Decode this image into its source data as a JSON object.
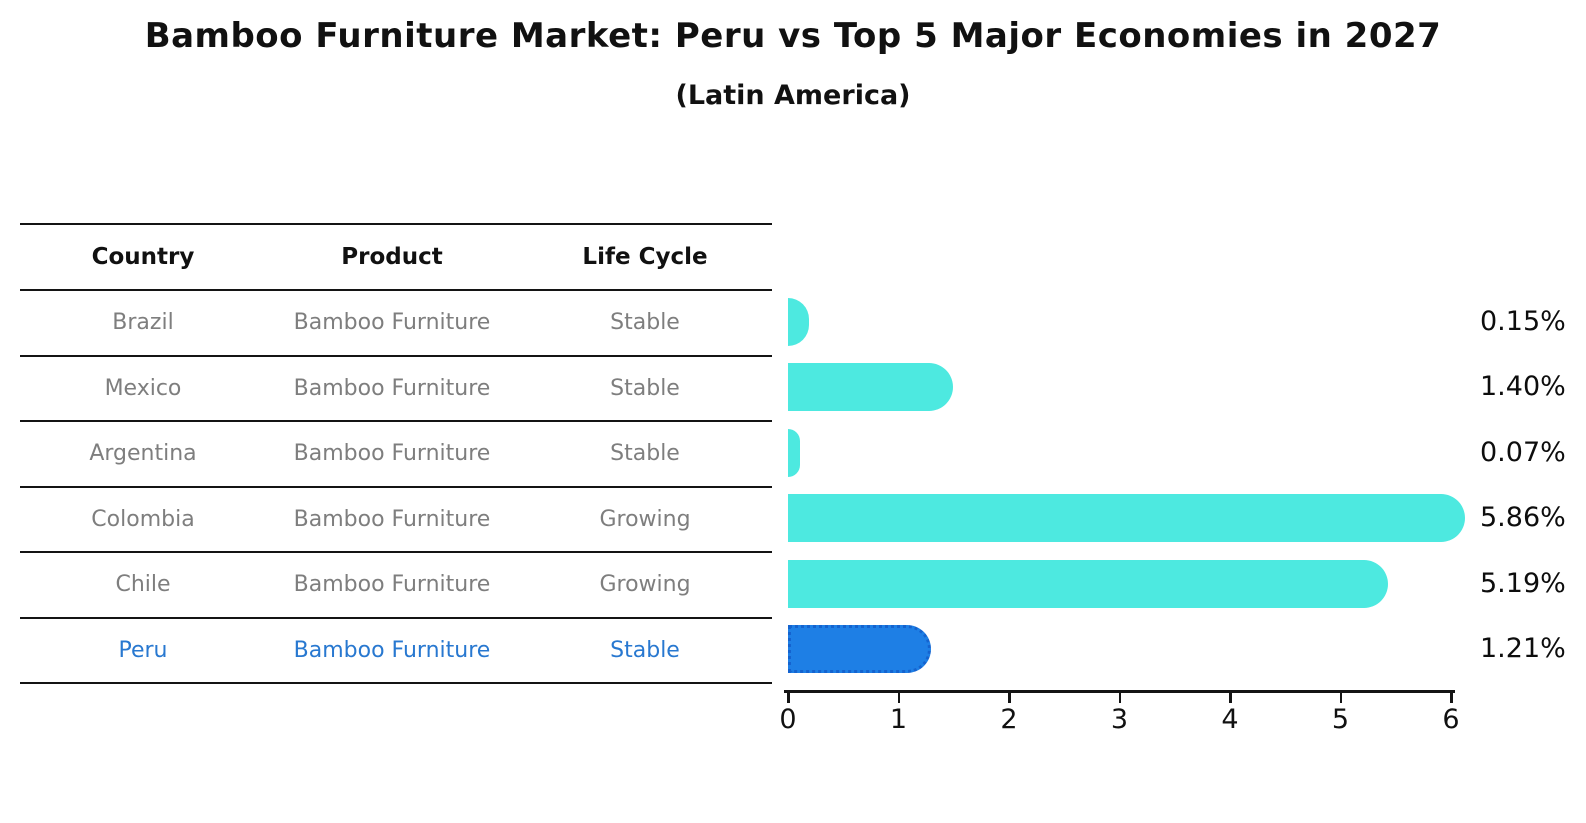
{
  "title": "Bamboo Furniture Market: Peru vs Top 5 Major Economies in 2027",
  "subtitle": "(Latin America)",
  "table": {
    "headers": [
      "Country",
      "Product",
      "Life Cycle"
    ],
    "rows": [
      {
        "country": "Brazil",
        "product": "Bamboo Furniture",
        "life_cycle": "Stable",
        "highlight": false
      },
      {
        "country": "Mexico",
        "product": "Bamboo Furniture",
        "life_cycle": "Stable",
        "highlight": false
      },
      {
        "country": "Argentina",
        "product": "Bamboo Furniture",
        "life_cycle": "Stable",
        "highlight": false
      },
      {
        "country": "Colombia",
        "product": "Bamboo Furniture",
        "life_cycle": "Growing",
        "highlight": false
      },
      {
        "country": "Chile",
        "product": "Bamboo Furniture",
        "life_cycle": "Growing",
        "highlight": false
      },
      {
        "country": "Peru",
        "product": "Bamboo Furniture",
        "life_cycle": "Stable",
        "highlight": true
      }
    ]
  },
  "chart_data": {
    "type": "bar",
    "orientation": "horizontal",
    "title": "Bamboo Furniture Market: Peru vs Top 5 Major Economies in 2027",
    "subtitle": "(Latin America)",
    "categories": [
      "Brazil",
      "Mexico",
      "Argentina",
      "Colombia",
      "Chile",
      "Peru"
    ],
    "values": [
      0.15,
      1.4,
      0.07,
      5.86,
      5.19,
      1.21
    ],
    "value_labels": [
      "0.15%",
      "1.40%",
      "0.07%",
      "5.86%",
      "5.19%",
      "1.21%"
    ],
    "x_tick_labels": [
      "0",
      "1",
      "2",
      "3",
      "4",
      "5",
      "6"
    ],
    "xlim": [
      0,
      6
    ],
    "grid": false,
    "legend": false,
    "highlight_index": 5,
    "bar_color": "#4DE9E0",
    "highlight_bar_color": "#1E7FE5",
    "highlight_border_color": "#1463CF"
  },
  "colors": {
    "background": "#FFFFFF",
    "text": "#111111",
    "muted_text": "#7E7E7E",
    "highlight_text": "#2878D0",
    "line": "#141414"
  }
}
